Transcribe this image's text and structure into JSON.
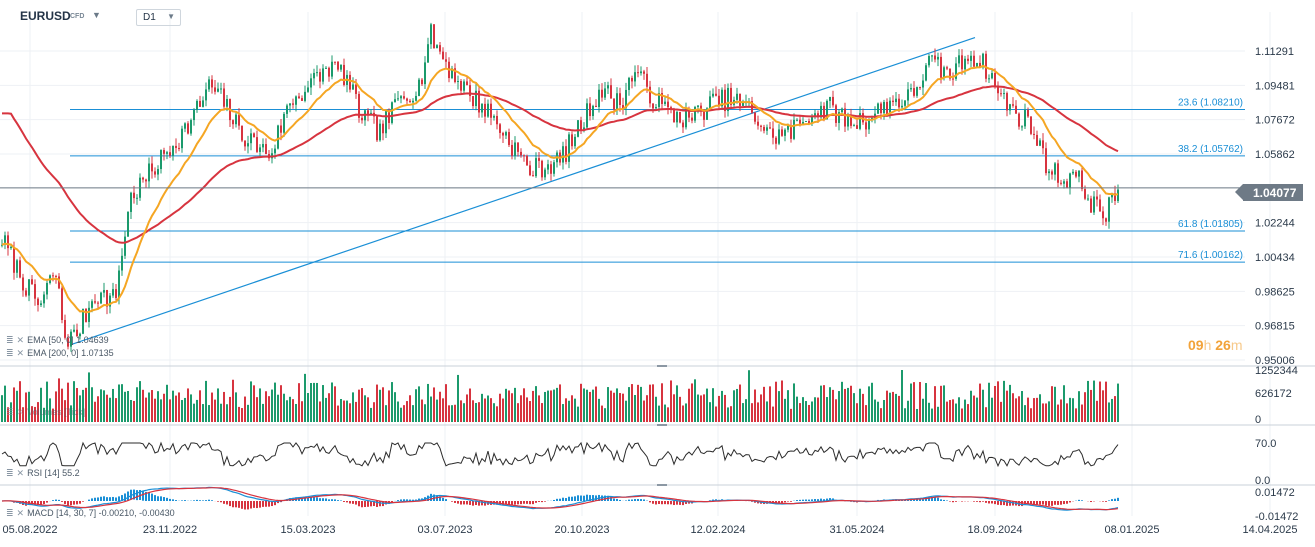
{
  "header": {
    "symbol": "EURUSD",
    "symbol_type": "CFD",
    "timeframe": "D1"
  },
  "indicators": {
    "ema50_label": "EMA [50, 0] 1.04639",
    "ema200_label": "EMA [200, 0] 1.07135",
    "volume_label": "Volumes [Tick]",
    "rsi_label": "RSI [14] 55.2",
    "macd_label": "MACD [14, 30, 7] -0.00210, -0.00430"
  },
  "countdown": {
    "hours": "09",
    "hours_unit": "h",
    "minutes": "26",
    "minutes_unit": "m"
  },
  "current_price": "1.04077",
  "colors": {
    "bull": "#1b9a6c",
    "bear": "#d7343f",
    "ema50": "#f5a623",
    "ema200": "#d7343f",
    "fib": "#1a8fd6",
    "trendline": "#1a8fd6",
    "grid": "#eef1f4",
    "price_line": "#6e7a86"
  },
  "chart_data": {
    "type": "candlestick",
    "x_axis": {
      "ticks": [
        "05.08.2022",
        "23.11.2022",
        "15.03.2023",
        "03.07.2023",
        "20.10.2023",
        "12.02.2024",
        "31.05.2024",
        "18.09.2024",
        "08.01.2025",
        "14.04.2025"
      ]
    },
    "price_panel": {
      "y_ticks": [
        "1.11291",
        "1.09481",
        "1.07672",
        "1.05862",
        "1.04077",
        "1.02244",
        "1.00434",
        "0.98625",
        "0.96815",
        "0.95006"
      ],
      "ylim": [
        0.95006,
        1.125
      ],
      "close_anchors": [
        [
          0,
          1.016
        ],
        [
          25,
          0.99
        ],
        [
          40,
          0.978
        ],
        [
          55,
          0.998
        ],
        [
          65,
          0.962
        ],
        [
          75,
          0.962
        ],
        [
          95,
          0.985
        ],
        [
          115,
          0.982
        ],
        [
          130,
          1.035
        ],
        [
          160,
          1.055
        ],
        [
          190,
          1.075
        ],
        [
          210,
          1.095
        ],
        [
          225,
          1.085
        ],
        [
          240,
          1.07
        ],
        [
          270,
          1.058
        ],
        [
          290,
          1.086
        ],
        [
          310,
          1.095
        ],
        [
          330,
          1.105
        ],
        [
          345,
          1.1
        ],
        [
          360,
          1.08
        ],
        [
          380,
          1.07
        ],
        [
          400,
          1.088
        ],
        [
          420,
          1.095
        ],
        [
          430,
          1.122
        ],
        [
          450,
          1.103
        ],
        [
          470,
          1.09
        ],
        [
          490,
          1.08
        ],
        [
          510,
          1.065
        ],
        [
          530,
          1.05
        ],
        [
          560,
          1.055
        ],
        [
          580,
          1.073
        ],
        [
          600,
          1.093
        ],
        [
          620,
          1.085
        ],
        [
          635,
          1.103
        ],
        [
          650,
          1.09
        ],
        [
          670,
          1.08
        ],
        [
          690,
          1.077
        ],
        [
          710,
          1.085
        ],
        [
          730,
          1.088
        ],
        [
          750,
          1.082
        ],
        [
          770,
          1.068
        ],
        [
          790,
          1.07
        ],
        [
          810,
          1.08
        ],
        [
          830,
          1.083
        ],
        [
          850,
          1.075
        ],
        [
          870,
          1.078
        ],
        [
          890,
          1.086
        ],
        [
          910,
          1.088
        ],
        [
          930,
          1.107
        ],
        [
          950,
          1.1
        ],
        [
          970,
          1.112
        ],
        [
          985,
          1.105
        ],
        [
          1000,
          1.09
        ],
        [
          1015,
          1.08
        ],
        [
          1030,
          1.075
        ],
        [
          1045,
          1.055
        ],
        [
          1060,
          1.045
        ],
        [
          1075,
          1.048
        ],
        [
          1090,
          1.034
        ],
        [
          1105,
          1.026
        ],
        [
          1118,
          1.04
        ]
      ],
      "ema50": "EMA [50, 0] 1.04639",
      "ema200": "EMA [200, 0] 1.07135",
      "fibonacci": [
        {
          "label": "23.6 (1.08210)",
          "value": 1.0821
        },
        {
          "label": "38.2 (1.05762)",
          "value": 1.05762
        },
        {
          "label": "61.8 (1.01805)",
          "value": 1.01805
        },
        {
          "label": "71.6 (1.00162)",
          "value": 1.00162
        }
      ],
      "current_price": 1.04077
    },
    "volume_panel": {
      "y_ticks": [
        "1252344",
        "626172",
        "0"
      ],
      "ylim": [
        0,
        1252344
      ]
    },
    "rsi_panel": {
      "y_ticks": [
        "70.0",
        "0.0"
      ],
      "last": 55.2
    },
    "macd_panel": {
      "y_ticks": [
        "0.01472",
        "-0.01472"
      ],
      "params": "14, 30, 7",
      "macd": -0.0021,
      "signal": -0.0043
    }
  }
}
